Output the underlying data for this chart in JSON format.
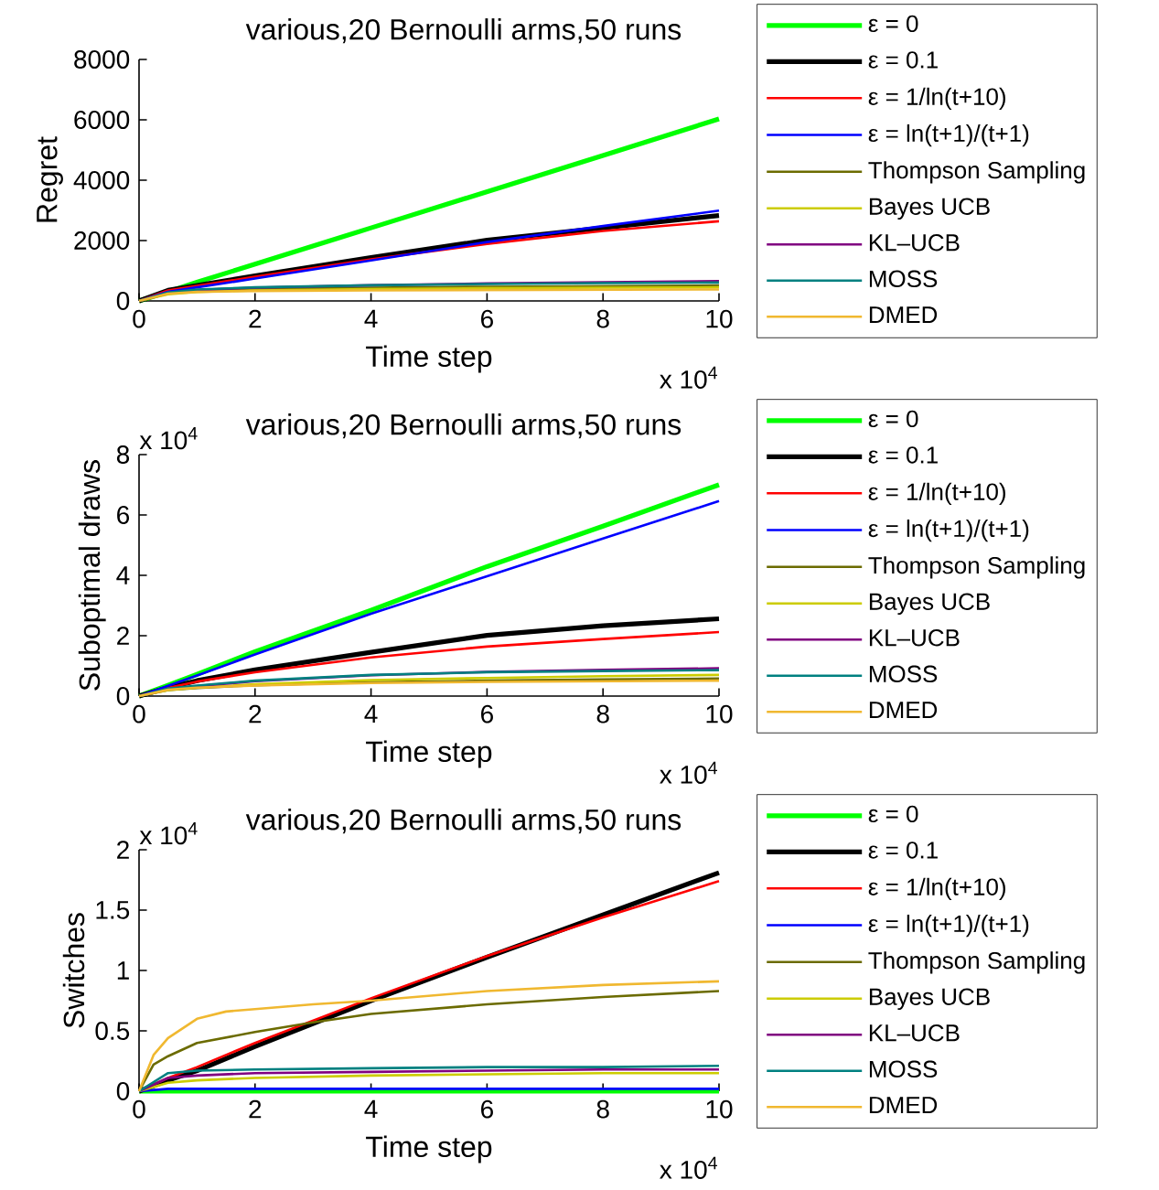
{
  "chart_data": [
    {
      "type": "line",
      "title": "various,20 Bernoulli arms,50 runs",
      "xlabel": "Time step",
      "ylabel": "Regret",
      "annotations": [
        "x 10$^{4}$"
      ],
      "xlim": [
        0,
        10
      ],
      "ylim": [
        0,
        8000
      ],
      "xticks": [
        0,
        2,
        4,
        6,
        8,
        10
      ],
      "yticks": [
        0,
        2000,
        4000,
        6000,
        8000
      ],
      "legend": "right",
      "grid": false,
      "x": [
        0,
        0.5,
        1,
        2,
        4,
        6,
        8,
        10
      ],
      "series": [
        {
          "name": "ε = 0",
          "color": "#00ff00",
          "values": [
            0,
            300,
            620,
            1220,
            2420,
            3620,
            4820,
            6030
          ]
        },
        {
          "name": "ε = 0.1",
          "color": "#000000",
          "values": [
            0,
            350,
            510,
            830,
            1440,
            2010,
            2420,
            2830
          ]
        },
        {
          "name": "ε = 1/ln(t+10)",
          "color": "#ff0000",
          "values": [
            0,
            350,
            500,
            800,
            1380,
            1890,
            2320,
            2640
          ]
        },
        {
          "name": "ε = ln(t+1)/(t+1)",
          "color": "#0000ff",
          "values": [
            0,
            300,
            450,
            740,
            1340,
            1950,
            2480,
            2990
          ]
        },
        {
          "name": "Thompson Sampling",
          "color": "#6b6b00",
          "values": [
            0,
            240,
            330,
            390,
            440,
            470,
            490,
            510
          ]
        },
        {
          "name": "Bayes UCB",
          "color": "#cccc00",
          "values": [
            0,
            220,
            300,
            350,
            390,
            420,
            440,
            450
          ]
        },
        {
          "name": "KL–UCB",
          "color": "#800080",
          "values": [
            0,
            260,
            360,
            440,
            520,
            580,
            620,
            660
          ]
        },
        {
          "name": "MOSS",
          "color": "#008080",
          "values": [
            0,
            280,
            380,
            450,
            520,
            560,
            590,
            610
          ]
        },
        {
          "name": "DMED",
          "color": "#f0b830",
          "values": [
            0,
            240,
            300,
            330,
            350,
            360,
            370,
            380
          ]
        }
      ]
    },
    {
      "type": "line",
      "title": "various,20 Bernoulli arms,50 runs",
      "xlabel": "Time step",
      "ylabel": "Suboptimal draws",
      "annotations": [
        "x 10$^{4}$",
        "x 10$^{4}$"
      ],
      "xlim": [
        0,
        10
      ],
      "ylim": [
        0,
        8
      ],
      "xticks": [
        0,
        2,
        4,
        6,
        8,
        10
      ],
      "yticks": [
        0,
        2,
        4,
        6,
        8
      ],
      "legend": "right",
      "grid": false,
      "x": [
        0,
        0.5,
        1,
        2,
        4,
        6,
        8,
        10
      ],
      "series": [
        {
          "name": "ε = 0",
          "color": "#00ff00",
          "values": [
            0,
            0.36,
            0.72,
            1.47,
            2.84,
            4.29,
            5.63,
            7.0
          ]
        },
        {
          "name": "ε = 0.1",
          "color": "#000000",
          "values": [
            0,
            0.28,
            0.51,
            0.87,
            1.45,
            2.01,
            2.33,
            2.56
          ]
        },
        {
          "name": "ε = 1/ln(t+10)",
          "color": "#ff0000",
          "values": [
            0,
            0.27,
            0.48,
            0.79,
            1.28,
            1.64,
            1.89,
            2.12
          ]
        },
        {
          "name": "ε = ln(t+1)/(t+1)",
          "color": "#0000ff",
          "values": [
            0,
            0.34,
            0.68,
            1.38,
            2.73,
            3.97,
            5.22,
            6.46
          ]
        },
        {
          "name": "Thompson Sampling",
          "color": "#6b6b00",
          "values": [
            0,
            0.2,
            0.27,
            0.36,
            0.46,
            0.51,
            0.55,
            0.58
          ]
        },
        {
          "name": "Bayes UCB",
          "color": "#cccc00",
          "values": [
            0,
            0.2,
            0.28,
            0.39,
            0.53,
            0.6,
            0.66,
            0.7
          ]
        },
        {
          "name": "KL–UCB",
          "color": "#800080",
          "values": [
            0,
            0.23,
            0.33,
            0.49,
            0.69,
            0.8,
            0.87,
            0.92
          ]
        },
        {
          "name": "MOSS",
          "color": "#008080",
          "values": [
            0,
            0.25,
            0.35,
            0.51,
            0.7,
            0.79,
            0.83,
            0.86
          ]
        },
        {
          "name": "DMED",
          "color": "#f0b830",
          "values": [
            0,
            0.21,
            0.28,
            0.35,
            0.43,
            0.47,
            0.49,
            0.51
          ]
        }
      ]
    },
    {
      "type": "line",
      "title": "various,20 Bernoulli arms,50 runs",
      "xlabel": "Time step",
      "ylabel": "Switches",
      "annotations": [
        "x 10$^{4}$",
        "x 10$^{4}$"
      ],
      "xlim": [
        0,
        10
      ],
      "ylim": [
        0,
        2
      ],
      "xticks": [
        0,
        2,
        4,
        6,
        8,
        10
      ],
      "yticks": [
        0,
        0.5,
        1,
        1.5,
        2
      ],
      "legend": "right",
      "grid": false,
      "x": [
        0,
        0.5,
        1,
        2,
        4,
        6,
        8,
        10
      ],
      "series": [
        {
          "name": "ε = 0",
          "color": "#00ff00",
          "values": [
            0,
            0,
            0,
            0,
            0,
            0,
            0,
            0
          ]
        },
        {
          "name": "ε = 0.1",
          "color": "#000000",
          "values": [
            0,
            0.09,
            0.17,
            0.37,
            0.75,
            1.11,
            1.46,
            1.81
          ]
        },
        {
          "name": "ε = 1/ln(t+10)",
          "color": "#ff0000",
          "values": [
            0,
            0.11,
            0.2,
            0.4,
            0.77,
            1.12,
            1.44,
            1.74
          ]
        },
        {
          "name": "ε = ln(t+1)/(t+1)",
          "color": "#0000ff",
          "values": [
            0,
            0.02,
            0.02,
            0.02,
            0.02,
            0.02,
            0.02,
            0.02
          ]
        },
        {
          "name": "Thompson Sampling",
          "color": "#6b6b00",
          "x": [
            0,
            0.25,
            0.5,
            1,
            2,
            3,
            4,
            6,
            8,
            10
          ],
          "values": [
            0,
            0.22,
            0.29,
            0.4,
            0.49,
            0.57,
            0.64,
            0.72,
            0.78,
            0.83
          ]
        },
        {
          "name": "Bayes UCB",
          "color": "#cccc00",
          "values": [
            0,
            0.07,
            0.09,
            0.11,
            0.13,
            0.14,
            0.15,
            0.15
          ]
        },
        {
          "name": "KL–UCB",
          "color": "#800080",
          "values": [
            0,
            0.11,
            0.13,
            0.15,
            0.16,
            0.17,
            0.18,
            0.18
          ]
        },
        {
          "name": "MOSS",
          "color": "#008080",
          "values": [
            0,
            0.15,
            0.17,
            0.18,
            0.19,
            0.2,
            0.2,
            0.21
          ]
        },
        {
          "name": "DMED",
          "color": "#f0b830",
          "x": [
            0,
            0.25,
            0.5,
            1,
            1.5,
            2,
            3,
            4,
            6,
            8,
            10
          ],
          "values": [
            0,
            0.3,
            0.44,
            0.6,
            0.66,
            0.68,
            0.72,
            0.75,
            0.83,
            0.88,
            0.91
          ]
        }
      ]
    }
  ]
}
